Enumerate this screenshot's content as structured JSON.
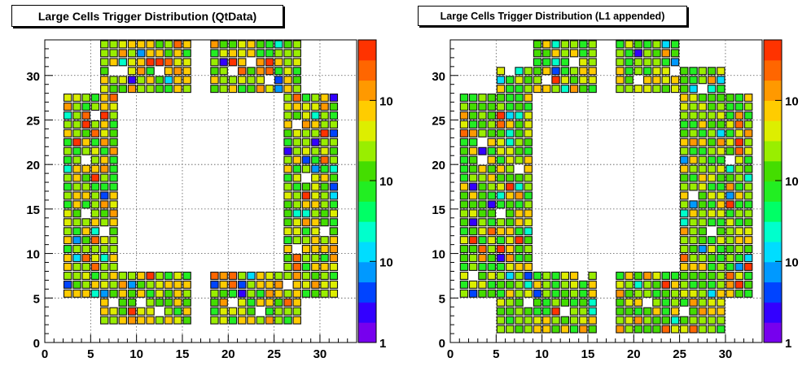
{
  "charts": [
    {
      "title": "Large Cells Trigger Distribution (QtData)",
      "variant": "qt"
    },
    {
      "title": "Large Cells Trigger Distribution (L1 appended)",
      "variant": "l1"
    }
  ],
  "chart_data": [
    {
      "type": "heatmap",
      "title": "Large Cells Trigger Distribution (QtData)",
      "xlim": [
        0,
        34
      ],
      "ylim": [
        0,
        34
      ],
      "x_ticks": [
        "0",
        "5",
        "10",
        "15",
        "20",
        "25",
        "30"
      ],
      "y_ticks": [
        "0",
        "5",
        "10",
        "15",
        "20",
        "25",
        "30"
      ],
      "color_scale": "log",
      "colorbar_labels": [
        "1",
        "10",
        "10",
        "10"
      ],
      "grid": true,
      "palette": [
        "#7700ee",
        "#3300ff",
        "#0044ff",
        "#0099ff",
        "#00ddff",
        "#00ffcc",
        "#00ff66",
        "#22ee22",
        "#44dd00",
        "#99ee00",
        "#ddee00",
        "#ffcc00",
        "#ff9900",
        "#ff6600",
        "#ff3300"
      ]
    },
    {
      "type": "heatmap",
      "title": "Large Cells Trigger Distribution (L1 appended)",
      "xlim": [
        0,
        34
      ],
      "ylim": [
        0,
        34
      ],
      "x_ticks": [
        "0",
        "5",
        "10",
        "15",
        "20",
        "25",
        "30"
      ],
      "y_ticks": [
        "0",
        "5",
        "10",
        "15",
        "20",
        "25",
        "30"
      ],
      "color_scale": "log",
      "colorbar_labels": [
        "1",
        "10",
        "10",
        "10"
      ],
      "grid": true,
      "palette": [
        "#7700ee",
        "#3300ff",
        "#0044ff",
        "#0099ff",
        "#00ddff",
        "#00ffcc",
        "#00ff66",
        "#22ee22",
        "#44dd00",
        "#99ee00",
        "#ddee00",
        "#ffcc00",
        "#ff9900",
        "#ff6600",
        "#ff3300"
      ]
    }
  ]
}
